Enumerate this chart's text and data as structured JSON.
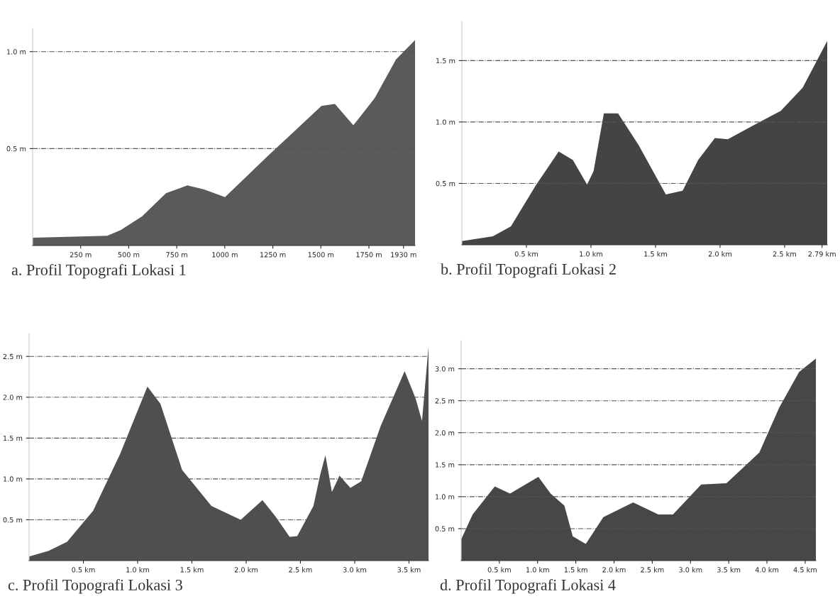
{
  "chart_data": [
    {
      "type": "area",
      "title": "a. Profil Topografi Lokasi 1",
      "grid": "y",
      "x": [
        0,
        388,
        458,
        569,
        694,
        805,
        890,
        1001,
        1086,
        1222,
        1363,
        1503,
        1573,
        1669,
        1780,
        1891,
        1990
      ],
      "series": [
        {
          "color": "#5a5a5a",
          "values": [
            0.04,
            0.05,
            0.08,
            0.15,
            0.27,
            0.31,
            0.29,
            0.25,
            0.33,
            0.46,
            0.59,
            0.72,
            0.73,
            0.62,
            0.76,
            0.96,
            1.06
          ]
        }
      ],
      "xlim": [
        0,
        1990
      ],
      "ylim": [
        0,
        1.12
      ],
      "xticks": [
        {
          "value": 250,
          "label": "250 m"
        },
        {
          "value": 500,
          "label": "500 m"
        },
        {
          "value": 750,
          "label": "750 m"
        },
        {
          "value": 1000,
          "label": "1000 m"
        },
        {
          "value": 1250,
          "label": "1250 m"
        },
        {
          "value": 1500,
          "label": "1500 m"
        },
        {
          "value": 1750,
          "label": "1750 m"
        },
        {
          "value": 1930,
          "label": "1930 m"
        }
      ],
      "yticks": [
        {
          "value": 0.5,
          "label": "0.5 m"
        },
        {
          "value": 1.0,
          "label": "1.0 m"
        }
      ]
    },
    {
      "type": "area",
      "title": "b. Profil Topografi Lokasi 2",
      "grid": "y",
      "x": [
        0,
        0.24,
        0.38,
        0.57,
        0.75,
        0.86,
        0.97,
        1.02,
        1.1,
        1.21,
        1.37,
        1.58,
        1.71,
        1.83,
        1.96,
        2.06,
        2.27,
        2.47,
        2.64,
        2.83
      ],
      "series": [
        {
          "color": "#444444",
          "values": [
            0.03,
            0.07,
            0.15,
            0.48,
            0.76,
            0.69,
            0.49,
            0.6,
            1.07,
            1.07,
            0.81,
            0.41,
            0.44,
            0.69,
            0.87,
            0.86,
            0.98,
            1.09,
            1.28,
            1.66
          ]
        }
      ],
      "xlim": [
        0,
        2.83
      ],
      "ylim": [
        0,
        1.82
      ],
      "xticks": [
        {
          "value": 0.5,
          "label": "0.5 km"
        },
        {
          "value": 1.0,
          "label": "1.0 km"
        },
        {
          "value": 1.5,
          "label": "1.5 km"
        },
        {
          "value": 2.0,
          "label": "2.0 km"
        },
        {
          "value": 2.5,
          "label": "2.5 km"
        },
        {
          "value": 2.79,
          "label": "2.79 km"
        }
      ],
      "yticks": [
        {
          "value": 0.5,
          "label": "0.5 m"
        },
        {
          "value": 1.0,
          "label": "1.0 m"
        },
        {
          "value": 1.5,
          "label": "1.5 m"
        }
      ]
    },
    {
      "type": "area",
      "title": "c. Profil Topografi Lokasi 3",
      "grid": "y",
      "x": [
        0,
        0.18,
        0.35,
        0.59,
        0.84,
        1.09,
        1.21,
        1.41,
        1.68,
        1.95,
        2.15,
        2.27,
        2.4,
        2.47,
        2.62,
        2.68,
        2.73,
        2.79,
        2.86,
        2.96,
        3.06,
        3.24,
        3.46,
        3.56,
        3.62,
        3.68
      ],
      "series": [
        {
          "color": "#4f4f4f",
          "values": [
            0.05,
            0.12,
            0.23,
            0.61,
            1.31,
            2.13,
            1.92,
            1.11,
            0.67,
            0.5,
            0.74,
            0.54,
            0.29,
            0.3,
            0.67,
            1.04,
            1.29,
            0.84,
            1.04,
            0.89,
            0.97,
            1.65,
            2.32,
            1.99,
            1.71,
            2.62
          ]
        }
      ],
      "xlim": [
        0,
        3.68
      ],
      "ylim": [
        0,
        2.78
      ],
      "xticks": [
        {
          "value": 0.5,
          "label": "0.5 km"
        },
        {
          "value": 1.0,
          "label": "1.0 km"
        },
        {
          "value": 1.5,
          "label": "1.5 km"
        },
        {
          "value": 2.0,
          "label": "2.0 km"
        },
        {
          "value": 2.5,
          "label": "2.5 km"
        },
        {
          "value": 3.0,
          "label": "3.0 km"
        },
        {
          "value": 3.5,
          "label": "3.5 km"
        }
      ],
      "yticks": [
        {
          "value": 0.5,
          "label": "0.5 m"
        },
        {
          "value": 1.0,
          "label": "1.0 m"
        },
        {
          "value": 1.5,
          "label": "1.5 m"
        },
        {
          "value": 2.0,
          "label": "2.0 m"
        },
        {
          "value": 2.5,
          "label": "2.5 m"
        }
      ]
    },
    {
      "type": "area",
      "title": "d. Profil Topografi Lokasi 4",
      "grid": "y",
      "x": [
        0,
        0.15,
        0.44,
        0.64,
        1.01,
        1.17,
        1.35,
        1.46,
        1.63,
        1.86,
        2.25,
        2.58,
        2.77,
        3.14,
        3.47,
        3.9,
        4.16,
        4.42,
        4.64
      ],
      "series": [
        {
          "color": "#474747",
          "values": [
            0.33,
            0.72,
            1.16,
            1.05,
            1.31,
            1.05,
            0.86,
            0.38,
            0.26,
            0.68,
            0.91,
            0.72,
            0.72,
            1.19,
            1.21,
            1.69,
            2.39,
            2.95,
            3.16
          ]
        }
      ],
      "xlim": [
        0,
        4.64
      ],
      "ylim": [
        0,
        3.44
      ],
      "xticks": [
        {
          "value": 0.5,
          "label": "0.5 km"
        },
        {
          "value": 1.0,
          "label": "1.0 km"
        },
        {
          "value": 1.5,
          "label": "1.5 km"
        },
        {
          "value": 2.0,
          "label": "2.0 km"
        },
        {
          "value": 2.5,
          "label": "2.5 km"
        },
        {
          "value": 3.0,
          "label": "3.0 km"
        },
        {
          "value": 3.5,
          "label": "3.5 km"
        },
        {
          "value": 4.0,
          "label": "4.0 km"
        },
        {
          "value": 4.5,
          "label": "4.5 km"
        }
      ],
      "yticks": [
        {
          "value": 0.5,
          "label": "0.5 m"
        },
        {
          "value": 1.0,
          "label": "1.0 m"
        },
        {
          "value": 1.5,
          "label": "1.5 m"
        },
        {
          "value": 2.0,
          "label": "2.0 m"
        },
        {
          "value": 2.5,
          "label": "2.5 m"
        },
        {
          "value": 3.0,
          "label": "3.0 m"
        }
      ]
    }
  ]
}
